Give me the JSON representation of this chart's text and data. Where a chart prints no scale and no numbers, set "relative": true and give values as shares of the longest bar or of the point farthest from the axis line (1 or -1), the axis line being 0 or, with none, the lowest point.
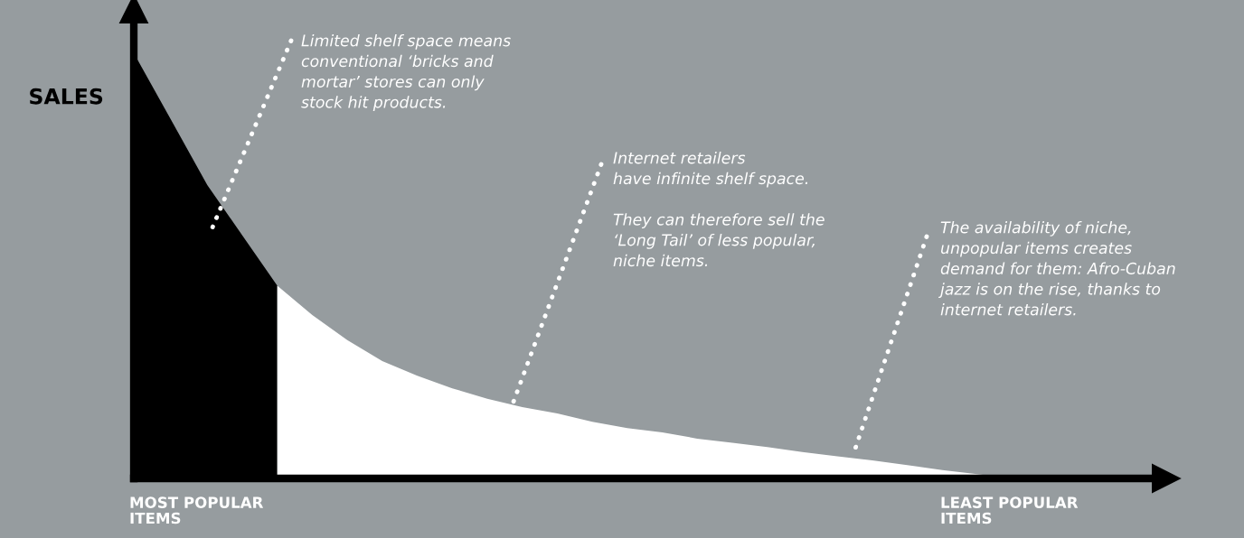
{
  "chart_data": {
    "type": "area",
    "relative": true,
    "ylabel": "SALES",
    "grid": false,
    "legend": false,
    "categories": [
      null,
      null,
      null,
      null,
      null,
      null,
      null,
      null,
      null,
      null,
      null,
      null,
      null,
      null,
      null,
      null,
      null,
      null,
      null,
      null,
      null,
      null,
      null,
      null,
      null,
      null,
      null,
      null,
      null,
      null
    ],
    "series": [
      {
        "color": "#000000",
        "values": [
          1.0,
          0.85,
          0.7,
          0.58,
          0.46,
          null,
          null,
          null,
          null,
          null,
          null,
          null,
          null,
          null,
          null,
          null,
          null,
          null,
          null,
          null,
          null,
          null,
          null,
          null,
          null,
          null,
          null,
          null,
          null,
          null
        ]
      },
      {
        "color": "#ffffff",
        "values": [
          null,
          null,
          null,
          null,
          0.46,
          0.39,
          0.33,
          0.28,
          0.245,
          0.215,
          0.19,
          0.17,
          0.155,
          0.135,
          0.12,
          0.11,
          0.095,
          0.085,
          0.075,
          0.063,
          0.053,
          0.043,
          0.032,
          0.02,
          0.01,
          0.0,
          null,
          null,
          null,
          null
        ]
      }
    ],
    "annotations": [
      "Limited shelf space means\nconventional ‘bricks and\nmortar’ stores can only\nstock hit products.",
      "Internet retailers\nhave infinite shelf space.\n\nThey can therefore sell the\n‘Long Tail’ of less popular,\nniche items.",
      "The availability of niche,\nunpopular items creates\ndemand for them: Afro-Cuban\njazz is on the rise, thanks to\ninternet retailers.",
      "MOST POPULAR\nITEMS",
      "LEAST POPULAR\nITEMS"
    ]
  }
}
